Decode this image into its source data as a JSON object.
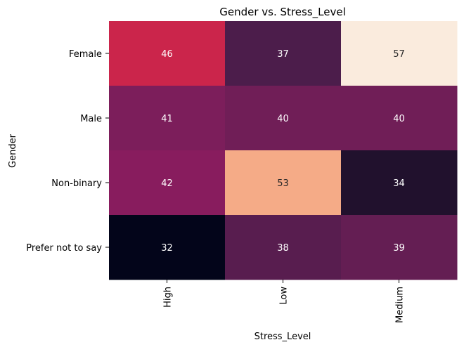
{
  "chart_data": {
    "type": "heatmap",
    "title": "Gender vs. Stress_Level",
    "xlabel": "Stress_Level",
    "ylabel": "Gender",
    "x_categories": [
      "High",
      "Low",
      "Medium"
    ],
    "y_categories": [
      "Female",
      "Male",
      "Non-binary",
      "Prefer not to say"
    ],
    "values": [
      [
        46,
        37,
        57
      ],
      [
        41,
        40,
        40
      ],
      [
        42,
        53,
        34
      ],
      [
        32,
        38,
        39
      ]
    ],
    "colorbar": false,
    "colormap": "rocket",
    "value_range": [
      32,
      57
    ]
  }
}
